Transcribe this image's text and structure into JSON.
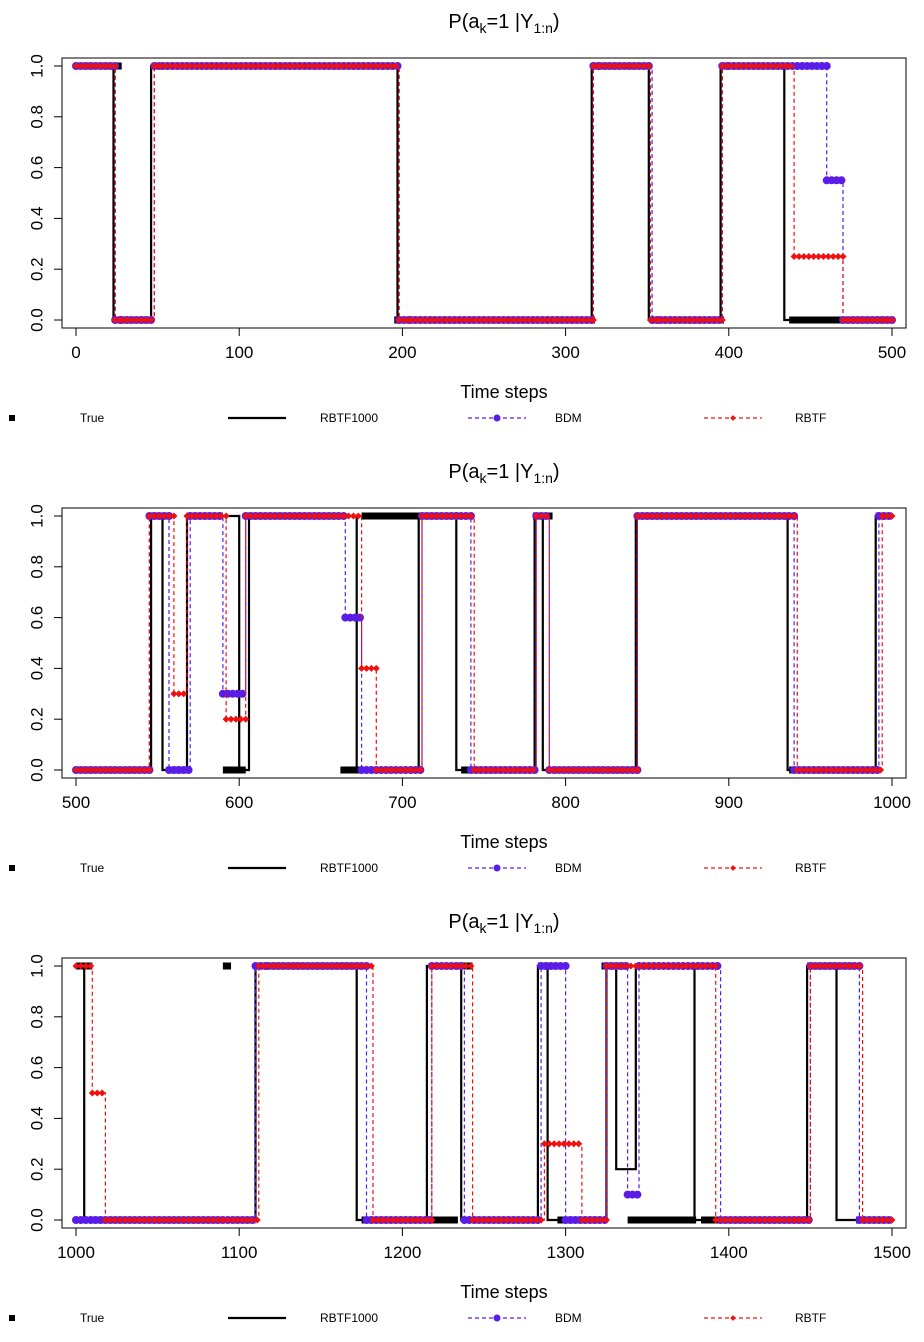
{
  "chart_data": [
    {
      "type": "line",
      "title": "P(a_k=1 |Y_1:n)",
      "title_main": "P(a",
      "title_sub1": "k",
      "title_mid": "=1 |Y",
      "title_sub2": "1:n",
      "title_end": ")",
      "xlabel": "Time steps",
      "ylabel": "",
      "xlim": [
        0,
        500
      ],
      "ylim": [
        0,
        1
      ],
      "x_ticks": [
        "0",
        "100",
        "200",
        "300",
        "400",
        "500"
      ],
      "y_ticks": [
        "0.0",
        "0.2",
        "0.4",
        "0.6",
        "0.8",
        "1.0"
      ],
      "legend": [
        "True",
        "RBTF1000",
        "BDM",
        "RBTF"
      ],
      "legend_position": "bottom",
      "series": [
        {
          "name": "True",
          "segments": [
            [
              0,
              28,
              1
            ],
            [
              28,
              47,
              0
            ],
            [
              47,
              195,
              1
            ],
            [
              195,
              318,
              0
            ],
            [
              318,
              352,
              1
            ],
            [
              352,
              397,
              0
            ],
            [
              397,
              437,
              1
            ],
            [
              437,
              500,
              0
            ]
          ]
        },
        {
          "name": "RBTF1000",
          "segments": [
            [
              0,
              23,
              1
            ],
            [
              23,
              28,
              0
            ],
            [
              28,
              46,
              0
            ],
            [
              46,
              52,
              1
            ],
            [
              52,
              197,
              1
            ],
            [
              197,
              204,
              0
            ],
            [
              204,
              316,
              0
            ],
            [
              316,
              320,
              1
            ],
            [
              320,
              351,
              1
            ],
            [
              351,
              356,
              0
            ],
            [
              356,
              395,
              0
            ],
            [
              395,
              399,
              1
            ],
            [
              399,
              434,
              1
            ],
            [
              434,
              440,
              0
            ],
            [
              440,
              500,
              0
            ]
          ]
        },
        {
          "name": "BDM",
          "segments": [
            [
              0,
              24,
              1
            ],
            [
              24,
              28,
              0
            ],
            [
              28,
              48,
              0
            ],
            [
              48,
              53,
              1
            ],
            [
              53,
              198,
              1
            ],
            [
              198,
              205,
              0
            ],
            [
              205,
              317,
              0
            ],
            [
              317,
              321,
              1
            ],
            [
              321,
              353,
              1
            ],
            [
              353,
              358,
              0
            ],
            [
              358,
              396,
              0
            ],
            [
              396,
              400,
              1
            ],
            [
              400,
              460,
              1
            ],
            [
              460,
              470,
              0.55
            ],
            [
              470,
              500,
              0
            ]
          ]
        },
        {
          "name": "RBTF",
          "segments": [
            [
              0,
              24,
              1
            ],
            [
              24,
              28,
              0
            ],
            [
              28,
              48,
              0
            ],
            [
              48,
              52,
              1
            ],
            [
              52,
              198,
              1
            ],
            [
              198,
              206,
              0
            ],
            [
              206,
              317,
              0
            ],
            [
              317,
              321,
              1
            ],
            [
              321,
              352,
              1
            ],
            [
              352,
              357,
              0
            ],
            [
              357,
              396,
              0
            ],
            [
              396,
              399,
              1
            ],
            [
              399,
              440,
              1
            ],
            [
              440,
              470,
              0.25
            ],
            [
              470,
              500,
              0
            ]
          ]
        }
      ]
    },
    {
      "type": "line",
      "title": "P(a_k=1 |Y_1:n)",
      "title_main": "P(a",
      "title_sub1": "k",
      "title_mid": "=1 |Y",
      "title_sub2": "1:n",
      "title_end": ")",
      "xlabel": "Time steps",
      "ylabel": "",
      "xlim": [
        500,
        1000
      ],
      "ylim": [
        0,
        1
      ],
      "x_ticks": [
        "500",
        "600",
        "700",
        "800",
        "900",
        "1000"
      ],
      "y_ticks": [
        "0.0",
        "0.2",
        "0.4",
        "0.6",
        "0.8",
        "1.0"
      ],
      "legend": [
        "True",
        "RBTF1000",
        "BDM",
        "RBTF"
      ],
      "legend_position": "bottom",
      "series": [
        {
          "name": "True",
          "segments": [
            [
              500,
              545,
              0
            ],
            [
              545,
              556,
              1
            ],
            [
              556,
              568,
              0
            ],
            [
              568,
              590,
              1
            ],
            [
              590,
              604,
              0
            ],
            [
              604,
              662,
              1
            ],
            [
              662,
              675,
              0
            ],
            [
              675,
              736,
              1
            ],
            [
              736,
              780,
              0
            ],
            [
              780,
              792,
              1
            ],
            [
              792,
              843,
              0
            ],
            [
              843,
              937,
              1
            ],
            [
              937,
              990,
              0
            ],
            [
              990,
              1000,
              1
            ]
          ]
        },
        {
          "name": "RBTF1000",
          "segments": [
            [
              500,
              546,
              0
            ],
            [
              546,
              553,
              1
            ],
            [
              553,
              568,
              0
            ],
            [
              568,
              574,
              1
            ],
            [
              574,
              600,
              1
            ],
            [
              600,
              606,
              0
            ],
            [
              606,
              672,
              1
            ],
            [
              672,
              676,
              0
            ],
            [
              676,
              710,
              0
            ],
            [
              710,
              716,
              1
            ],
            [
              716,
              733,
              1
            ],
            [
              733,
              738,
              0
            ],
            [
              738,
              781,
              0
            ],
            [
              781,
              786,
              1
            ],
            [
              786,
              792,
              0
            ],
            [
              792,
              843,
              0
            ],
            [
              843,
              848,
              1
            ],
            [
              848,
              936,
              1
            ],
            [
              936,
              942,
              0
            ],
            [
              942,
              990,
              0
            ],
            [
              990,
              996,
              1
            ],
            [
              996,
              1000,
              1
            ]
          ]
        },
        {
          "name": "BDM",
          "segments": [
            [
              500,
              545,
              0
            ],
            [
              545,
              557,
              1
            ],
            [
              557,
              570,
              0
            ],
            [
              570,
              590,
              1
            ],
            [
              590,
              604,
              0.3
            ],
            [
              604,
              665,
              1
            ],
            [
              665,
              675,
              0.6
            ],
            [
              675,
              712,
              0
            ],
            [
              712,
              742,
              1
            ],
            [
              742,
              782,
              0
            ],
            [
              782,
              790,
              1
            ],
            [
              790,
              844,
              0
            ],
            [
              844,
              940,
              1
            ],
            [
              940,
              992,
              0
            ],
            [
              992,
              1000,
              1
            ]
          ]
        },
        {
          "name": "RBTF",
          "segments": [
            [
              500,
              545,
              0
            ],
            [
              545,
              560,
              1
            ],
            [
              560,
              568,
              0.3
            ],
            [
              568,
              592,
              1
            ],
            [
              592,
              604,
              0.2
            ],
            [
              604,
              675,
              1
            ],
            [
              675,
              684,
              0.4
            ],
            [
              684,
              712,
              0
            ],
            [
              712,
              744,
              1
            ],
            [
              744,
              782,
              0
            ],
            [
              782,
              790,
              1
            ],
            [
              790,
              844,
              0
            ],
            [
              844,
              942,
              1
            ],
            [
              942,
              994,
              0
            ],
            [
              994,
              1000,
              1
            ]
          ]
        }
      ]
    },
    {
      "type": "line",
      "title": "P(a_k=1 |Y_1:n)",
      "title_main": "P(a",
      "title_sub1": "k",
      "title_mid": "=1 |Y",
      "title_sub2": "1:n",
      "title_end": ")",
      "xlabel": "Time steps",
      "ylabel": "",
      "xlim": [
        1000,
        1500
      ],
      "ylim": [
        0,
        1
      ],
      "x_ticks": [
        "1000",
        "1100",
        "1200",
        "1300",
        "1400",
        "1500"
      ],
      "y_ticks": [
        "0.0",
        "0.2",
        "0.4",
        "0.6",
        "0.8",
        "1.0"
      ],
      "legend": [
        "True",
        "RBTF1000",
        "BDM",
        "RBTF"
      ],
      "legend_position": "bottom",
      "series": [
        {
          "name": "True",
          "segments": [
            [
              1000,
              1010,
              1
            ],
            [
              1010,
              1090,
              0
            ],
            [
              1090,
              1095,
              1
            ],
            [
              1095,
              1110,
              0
            ],
            [
              1110,
              1175,
              1
            ],
            [
              1175,
              1234,
              0
            ],
            [
              1234,
              1243,
              1
            ],
            [
              1243,
              1283,
              0
            ],
            [
              1283,
              1295,
              1
            ],
            [
              1295,
              1322,
              0
            ],
            [
              1322,
              1338,
              1
            ],
            [
              1338,
              1380,
              0
            ],
            [
              1380,
              1383,
              1
            ],
            [
              1383,
              1448,
              0
            ],
            [
              1448,
              1478,
              1
            ],
            [
              1478,
              1500,
              0
            ]
          ]
        },
        {
          "name": "RBTF1000",
          "segments": [
            [
              1000,
              1005,
              1
            ],
            [
              1005,
              1012,
              0
            ],
            [
              1012,
              1110,
              0
            ],
            [
              1110,
              1116,
              1
            ],
            [
              1116,
              1172,
              1
            ],
            [
              1172,
              1178,
              0
            ],
            [
              1178,
              1215,
              0
            ],
            [
              1215,
              1221,
              1
            ],
            [
              1221,
              1236,
              1
            ],
            [
              1236,
              1242,
              0
            ],
            [
              1242,
              1283,
              0
            ],
            [
              1283,
              1289,
              1
            ],
            [
              1289,
              1293,
              0
            ],
            [
              1293,
              1325,
              0
            ],
            [
              1325,
              1331,
              1
            ],
            [
              1331,
              1343,
              0.2
            ],
            [
              1343,
              1348,
              1
            ],
            [
              1348,
              1379,
              1
            ],
            [
              1379,
              1384,
              0
            ],
            [
              1384,
              1448,
              0
            ],
            [
              1448,
              1455,
              1
            ],
            [
              1455,
              1466,
              1
            ],
            [
              1466,
              1472,
              0
            ],
            [
              1472,
              1500,
              0
            ]
          ]
        },
        {
          "name": "BDM",
          "segments": [
            [
              1000,
              1110,
              0
            ],
            [
              1110,
              1118,
              1
            ],
            [
              1118,
              1178,
              1
            ],
            [
              1178,
              1218,
              0
            ],
            [
              1218,
              1238,
              1
            ],
            [
              1238,
              1285,
              0
            ],
            [
              1285,
              1300,
              1
            ],
            [
              1300,
              1325,
              0
            ],
            [
              1325,
              1338,
              1
            ],
            [
              1338,
              1345,
              0.1
            ],
            [
              1345,
              1395,
              1
            ],
            [
              1395,
              1450,
              0
            ],
            [
              1450,
              1480,
              1
            ],
            [
              1480,
              1500,
              0
            ]
          ]
        },
        {
          "name": "RBTF",
          "segments": [
            [
              1000,
              1010,
              1
            ],
            [
              1010,
              1018,
              0.5
            ],
            [
              1018,
              1112,
              0
            ],
            [
              1112,
              1182,
              1
            ],
            [
              1182,
              1218,
              0
            ],
            [
              1218,
              1243,
              1
            ],
            [
              1243,
              1287,
              0
            ],
            [
              1287,
              1310,
              0.3
            ],
            [
              1310,
              1325,
              0
            ],
            [
              1325,
              1350,
              1
            ],
            [
              1350,
              1392,
              1
            ],
            [
              1392,
              1450,
              0
            ],
            [
              1450,
              1482,
              1
            ],
            [
              1482,
              1500,
              0
            ]
          ]
        }
      ]
    }
  ],
  "colors": {
    "true": "#000000",
    "rbtf1000": "#000000",
    "bdm": "#5b1ce8",
    "rbtf": "#f01010"
  }
}
